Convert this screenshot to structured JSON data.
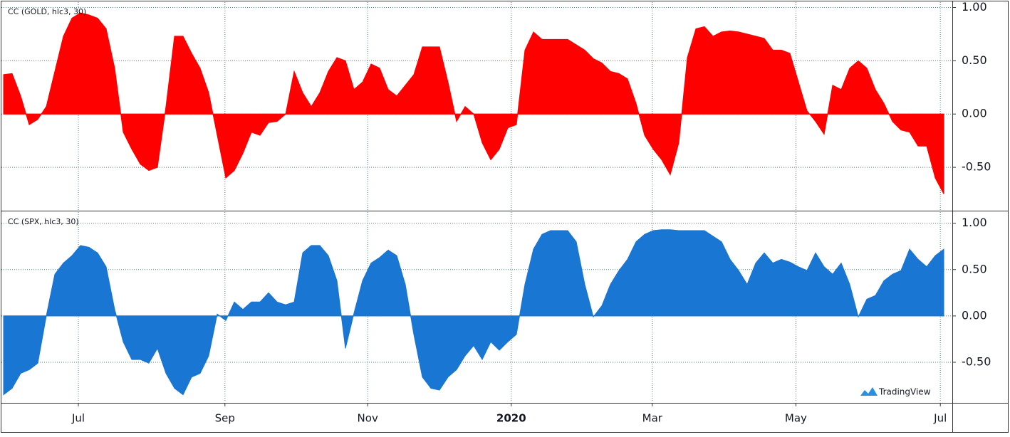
{
  "chart_data": [
    {
      "type": "area",
      "title": "CC (GOLD, hlc3, 30)",
      "categories": [
        null,
        null,
        null,
        null,
        null,
        null,
        null,
        null,
        null,
        null,
        null,
        null,
        null,
        null,
        null,
        null,
        null,
        null,
        null,
        null,
        null,
        null,
        null,
        null,
        null,
        null,
        null,
        null,
        null,
        null,
        null,
        null,
        null,
        null,
        null,
        null,
        null,
        null,
        null,
        null,
        null,
        null,
        null,
        null,
        null,
        null,
        null,
        null,
        null,
        null,
        null,
        null,
        null,
        null,
        null,
        null,
        null,
        null,
        null,
        null,
        null,
        null,
        null,
        null,
        null,
        null,
        null,
        null,
        null,
        null,
        null,
        null,
        null,
        null,
        null,
        null,
        null,
        null,
        null,
        null,
        null,
        null,
        null,
        null,
        null,
        null,
        null,
        null,
        null,
        null,
        null,
        null,
        null,
        null,
        null,
        null,
        null,
        null,
        null,
        null,
        null,
        null,
        null,
        null,
        null,
        null,
        null,
        null,
        null,
        null,
        null
      ],
      "series": [
        {
          "color": "#ff0000",
          "values": [
            0.37,
            0.38,
            0.17,
            -0.1,
            -0.05,
            0.07,
            0.4,
            0.73,
            0.9,
            0.95,
            0.93,
            0.9,
            0.8,
            0.43,
            -0.17,
            -0.33,
            -0.47,
            -0.53,
            -0.5,
            0.07,
            0.73,
            0.73,
            0.57,
            0.43,
            0.2,
            -0.2,
            -0.6,
            -0.53,
            -0.37,
            -0.17,
            -0.2,
            -0.08,
            -0.07,
            0.0,
            0.4,
            0.2,
            0.07,
            0.2,
            0.4,
            0.53,
            0.5,
            0.23,
            0.3,
            0.47,
            0.43,
            0.23,
            0.17,
            0.27,
            0.37,
            0.63,
            0.63,
            0.63,
            0.3,
            -0.07,
            0.07,
            0.0,
            -0.27,
            -0.43,
            -0.33,
            -0.13,
            -0.1,
            0.6,
            0.77,
            0.7,
            0.7,
            0.7,
            0.7,
            0.65,
            0.6,
            0.52,
            0.48,
            0.4,
            0.38,
            0.33,
            0.1,
            -0.2,
            -0.33,
            -0.43,
            -0.57,
            -0.27,
            0.53,
            0.8,
            0.82,
            0.73,
            0.77,
            0.78,
            0.77,
            0.75,
            0.73,
            0.71,
            0.6,
            0.6,
            0.57,
            0.3,
            0.03,
            -0.07,
            -0.19,
            0.27,
            0.23,
            0.43,
            0.5,
            0.43,
            0.23,
            0.1,
            -0.07,
            -0.15,
            -0.17,
            -0.3,
            -0.3,
            -0.6,
            -0.75
          ]
        }
      ],
      "ylim": [
        -0.9,
        1.05
      ],
      "yticks": [
        {
          "value": 1,
          "label": "1.00"
        },
        {
          "value": 0.5,
          "label": "0.50"
        },
        {
          "value": 0,
          "label": "0.00"
        },
        {
          "value": -0.5,
          "label": "-0.50"
        }
      ],
      "grid": true
    },
    {
      "type": "area",
      "title": "CC (SPX, hlc3, 30)",
      "categories": [
        null,
        null,
        null,
        null,
        null,
        null,
        null,
        null,
        null,
        null,
        null,
        null,
        null,
        null,
        null,
        null,
        null,
        null,
        null,
        null,
        null,
        null,
        null,
        null,
        null,
        null,
        null,
        null,
        null,
        null,
        null,
        null,
        null,
        null,
        null,
        null,
        null,
        null,
        null,
        null,
        null,
        null,
        null,
        null,
        null,
        null,
        null,
        null,
        null,
        null,
        null,
        null,
        null,
        null,
        null,
        null,
        null,
        null,
        null,
        null,
        null,
        null,
        null,
        null,
        null,
        null,
        null,
        null,
        null,
        null,
        null,
        null,
        null,
        null,
        null,
        null,
        null,
        null,
        null,
        null,
        null,
        null,
        null,
        null,
        null,
        null,
        null,
        null,
        null,
        null,
        null,
        null,
        null,
        null,
        null,
        null,
        null,
        null,
        null,
        null,
        null,
        null,
        null,
        null,
        null,
        null,
        null,
        null,
        null,
        null,
        null
      ],
      "series": [
        {
          "color": "#1976d2",
          "values": [
            -0.85,
            -0.78,
            -0.62,
            -0.58,
            -0.51,
            0.0,
            0.45,
            0.57,
            0.65,
            0.76,
            0.74,
            0.68,
            0.53,
            0.07,
            -0.28,
            -0.47,
            -0.47,
            -0.51,
            -0.35,
            -0.62,
            -0.78,
            -0.85,
            -0.66,
            -0.62,
            -0.43,
            0.02,
            -0.05,
            0.15,
            0.07,
            0.15,
            0.15,
            0.25,
            0.15,
            0.12,
            0.15,
            0.68,
            0.76,
            0.76,
            0.65,
            0.38,
            -0.35,
            0.03,
            0.38,
            0.57,
            0.63,
            0.71,
            0.65,
            0.34,
            -0.2,
            -0.66,
            -0.78,
            -0.8,
            -0.66,
            -0.58,
            -0.43,
            -0.32,
            -0.47,
            -0.28,
            -0.37,
            -0.28,
            -0.2,
            0.34,
            0.72,
            0.88,
            0.92,
            0.92,
            0.92,
            0.8,
            0.34,
            -0.01,
            0.11,
            0.34,
            0.49,
            0.61,
            0.8,
            0.88,
            0.92,
            0.93,
            0.93,
            0.92,
            0.92,
            0.92,
            0.92,
            0.86,
            0.8,
            0.61,
            0.49,
            0.34,
            0.57,
            0.68,
            0.57,
            0.61,
            0.58,
            0.53,
            0.49,
            0.68,
            0.53,
            0.45,
            0.57,
            0.34,
            -0.01,
            0.18,
            0.22,
            0.38,
            0.45,
            0.49,
            0.72,
            0.61,
            0.53,
            0.65,
            0.72
          ]
        }
      ],
      "ylim": [
        -0.93,
        1.12
      ],
      "yticks": [
        {
          "value": 1,
          "label": "1.00"
        },
        {
          "value": 0.5,
          "label": "0.50"
        },
        {
          "value": 0,
          "label": "0.00"
        },
        {
          "value": -0.5,
          "label": "-0.50"
        }
      ],
      "xticks": [
        {
          "value": 8.75,
          "label": "Jul"
        },
        {
          "value": 25.9,
          "label": "Sep"
        },
        {
          "value": 42.6,
          "label": "Nov"
        },
        {
          "value": 59.4,
          "label": "2020"
        },
        {
          "value": 75.9,
          "label": "Mar"
        },
        {
          "value": 92.7,
          "label": "May"
        },
        {
          "value": 109.6,
          "label": "Jul"
        }
      ],
      "grid": true
    }
  ],
  "watermark": "TradingView"
}
